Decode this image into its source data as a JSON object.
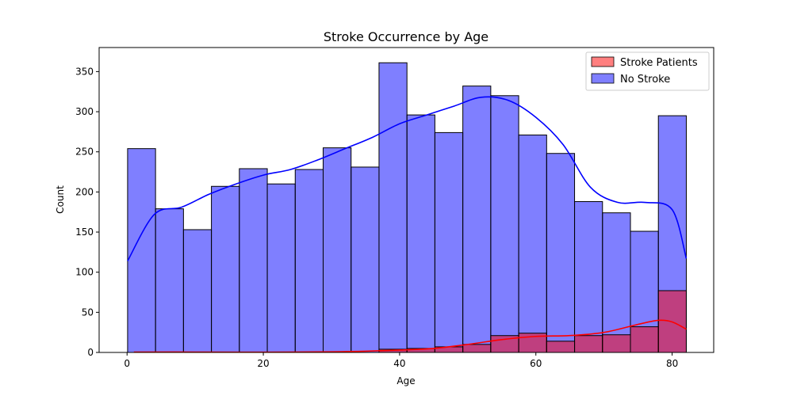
{
  "chart_data": {
    "type": "bar",
    "title": "Stroke Occurrence by Age",
    "xlabel": "Age",
    "ylabel": "Count",
    "xlim": [
      -4.1,
      86.1
    ],
    "ylim": [
      0,
      380
    ],
    "xticks": [
      0,
      20,
      40,
      60,
      80
    ],
    "yticks": [
      0,
      50,
      100,
      150,
      200,
      250,
      300,
      350
    ],
    "grid": false,
    "legend_position": "top-right",
    "bin_edges": [
      0.08,
      4.18,
      8.28,
      12.38,
      16.48,
      20.58,
      24.68,
      28.78,
      32.88,
      36.98,
      41.08,
      45.18,
      49.28,
      53.38,
      57.48,
      61.58,
      65.68,
      69.78,
      73.88,
      77.98,
      82.08
    ],
    "series": [
      {
        "name": "No Stroke",
        "color": "#0000ff",
        "bar_fill": "rgba(0,0,255,0.5)",
        "values": [
          254,
          179,
          153,
          207,
          229,
          210,
          228,
          255,
          231,
          361,
          296,
          274,
          332,
          320,
          271,
          248,
          188,
          174,
          151,
          295
        ],
        "kde_x": [
          0.08,
          4,
          8,
          12,
          16,
          20,
          24,
          28,
          32,
          36,
          40,
          44,
          48,
          52,
          56,
          60,
          64,
          68,
          72,
          76,
          80,
          82.08
        ],
        "kde_y": [
          114,
          172,
          181,
          197,
          210,
          221,
          228,
          240,
          254,
          268,
          285,
          296,
          307,
          318,
          314,
          293,
          259,
          206,
          187,
          187,
          178,
          117
        ]
      },
      {
        "name": "Stroke Patients",
        "color": "#ff0000",
        "bar_fill": "rgba(255,0,0,0.5)",
        "values": [
          0,
          0,
          0,
          0,
          0,
          0,
          0,
          0,
          0,
          4,
          5,
          7,
          10,
          21,
          24,
          14,
          21,
          22,
          32,
          77
        ],
        "kde_x": [
          1,
          10,
          20,
          30,
          35,
          40,
          45,
          50,
          55,
          60,
          65,
          70,
          75,
          78,
          80,
          82.08
        ],
        "kde_y": [
          0.5,
          0.5,
          0.3,
          0.8,
          1.5,
          3,
          5,
          10,
          16,
          20,
          21,
          25,
          35,
          40,
          38,
          29
        ]
      }
    ]
  }
}
